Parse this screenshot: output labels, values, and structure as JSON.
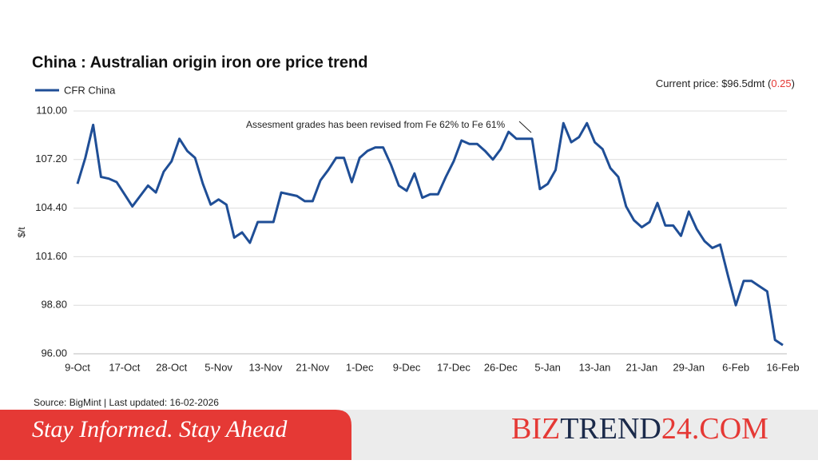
{
  "chart_data": {
    "type": "line",
    "title": "China : Australian origin iron ore price trend",
    "y_label": "$/t",
    "current_price": "Current price: $96.5dmt (",
    "current_change": "0.25",
    "current_close": ")",
    "annotation": "Assesment grades has been revised from Fe 62% to Fe 61%",
    "source": "Source: BigMint | Last updated: 16-02-2026",
    "categories": [
      "9-Oct",
      null,
      null,
      null,
      null,
      null,
      "17-Oct",
      null,
      null,
      null,
      null,
      null,
      "28-Oct",
      null,
      null,
      null,
      null,
      null,
      "5-Nov",
      null,
      null,
      null,
      null,
      null,
      "13-Nov",
      null,
      null,
      null,
      null,
      null,
      "21-Nov",
      null,
      null,
      null,
      null,
      null,
      "1-Dec",
      null,
      null,
      null,
      null,
      null,
      "9-Dec",
      null,
      null,
      null,
      null,
      null,
      "17-Dec",
      null,
      null,
      null,
      null,
      null,
      "26-Dec",
      null,
      null,
      null,
      null,
      null,
      "5-Jan",
      null,
      null,
      null,
      null,
      null,
      "13-Jan",
      null,
      null,
      null,
      null,
      null,
      "21-Jan",
      null,
      null,
      null,
      null,
      null,
      "29-Jan",
      null,
      null,
      null,
      null,
      null,
      "6-Feb",
      null,
      null,
      null,
      null,
      null,
      "16-Feb"
    ],
    "series": [
      {
        "name": "CFR China",
        "color": "#1f4e96",
        "values": [
          105.8,
          107.3,
          109.2,
          106.2,
          106.1,
          105.9,
          105.2,
          104.5,
          105.1,
          105.7,
          105.3,
          106.5,
          107.1,
          108.4,
          107.7,
          107.3,
          105.8,
          104.6,
          104.9,
          104.6,
          102.7,
          103.0,
          102.4,
          103.6,
          103.6,
          103.6,
          105.3,
          105.2,
          105.1,
          104.8,
          104.8,
          106.0,
          106.6,
          107.3,
          107.3,
          105.9,
          107.3,
          107.7,
          107.9,
          107.9,
          106.9,
          105.7,
          105.4,
          106.4,
          105.0,
          105.2,
          105.2,
          106.2,
          107.1,
          108.3,
          108.1,
          108.1,
          107.7,
          107.2,
          107.8,
          108.8,
          108.4,
          108.4,
          108.4,
          105.5,
          105.8,
          106.6,
          109.3,
          108.2,
          108.5,
          109.3,
          108.2,
          107.8,
          106.7,
          106.2,
          104.5,
          103.7,
          103.3,
          103.6,
          104.7,
          103.4,
          103.4,
          102.8,
          104.2,
          103.2,
          102.5,
          102.1,
          102.3,
          100.5,
          98.8,
          100.2,
          100.2,
          99.9,
          99.6,
          96.8,
          96.5
        ]
      }
    ],
    "ylim": [
      96,
      110
    ],
    "yticks": [
      {
        "value": 96,
        "label": "96.00"
      },
      {
        "value": 98.8,
        "label": "98.80"
      },
      {
        "value": 101.6,
        "label": "101.60"
      },
      {
        "value": 104.4,
        "label": "104.40"
      },
      {
        "value": 107.2,
        "label": "107.20"
      },
      {
        "value": 110,
        "label": "110.00"
      }
    ],
    "grid": true
  },
  "banner": {
    "tagline": "Stay Informed. Stay Ahead",
    "brand": [
      "BIZ",
      "TREND",
      "24.COM"
    ]
  }
}
